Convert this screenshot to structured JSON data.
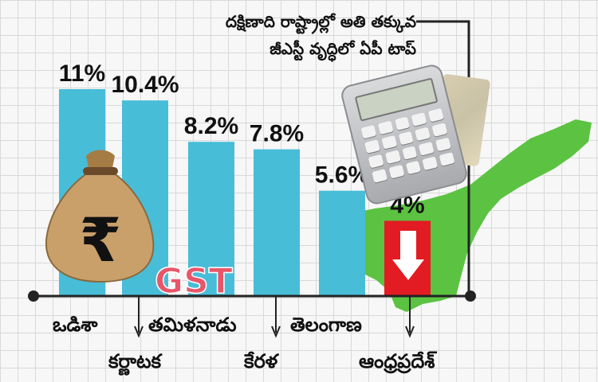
{
  "headline": [
    "దక్షిణాది రాష్ట్రాల్లో అతి తక్కువ",
    "జీఎస్టీ వృద్ధిలో ఏపీ టాప్"
  ],
  "gst_badge": "GST",
  "colors": {
    "bar": "#48bdd8",
    "highlight_bar": "#e31b23",
    "map": "#5bc341",
    "baseline": "#222222"
  },
  "icons": [
    "rupee-money-bag-icon",
    "calculator-icon",
    "andhra-pradesh-map-icon",
    "down-arrow-icon"
  ],
  "chart_data": {
    "type": "bar",
    "categories": [
      "ఒడిశా",
      "కర్ణాటక",
      "తమిళనాడు",
      "కేరళ",
      "తెలంగాణ",
      "ఆంధ్రప్రదేశ్"
    ],
    "values": [
      11,
      10.4,
      8.2,
      7.8,
      5.6,
      4
    ],
    "value_labels": [
      "11%",
      "10.4%",
      "8.2%",
      "7.8%",
      "5.6%",
      "4%"
    ],
    "highlight": "ఆంధ్రప్రదేశ్",
    "ylim": [
      0,
      12
    ],
    "grid": true
  }
}
